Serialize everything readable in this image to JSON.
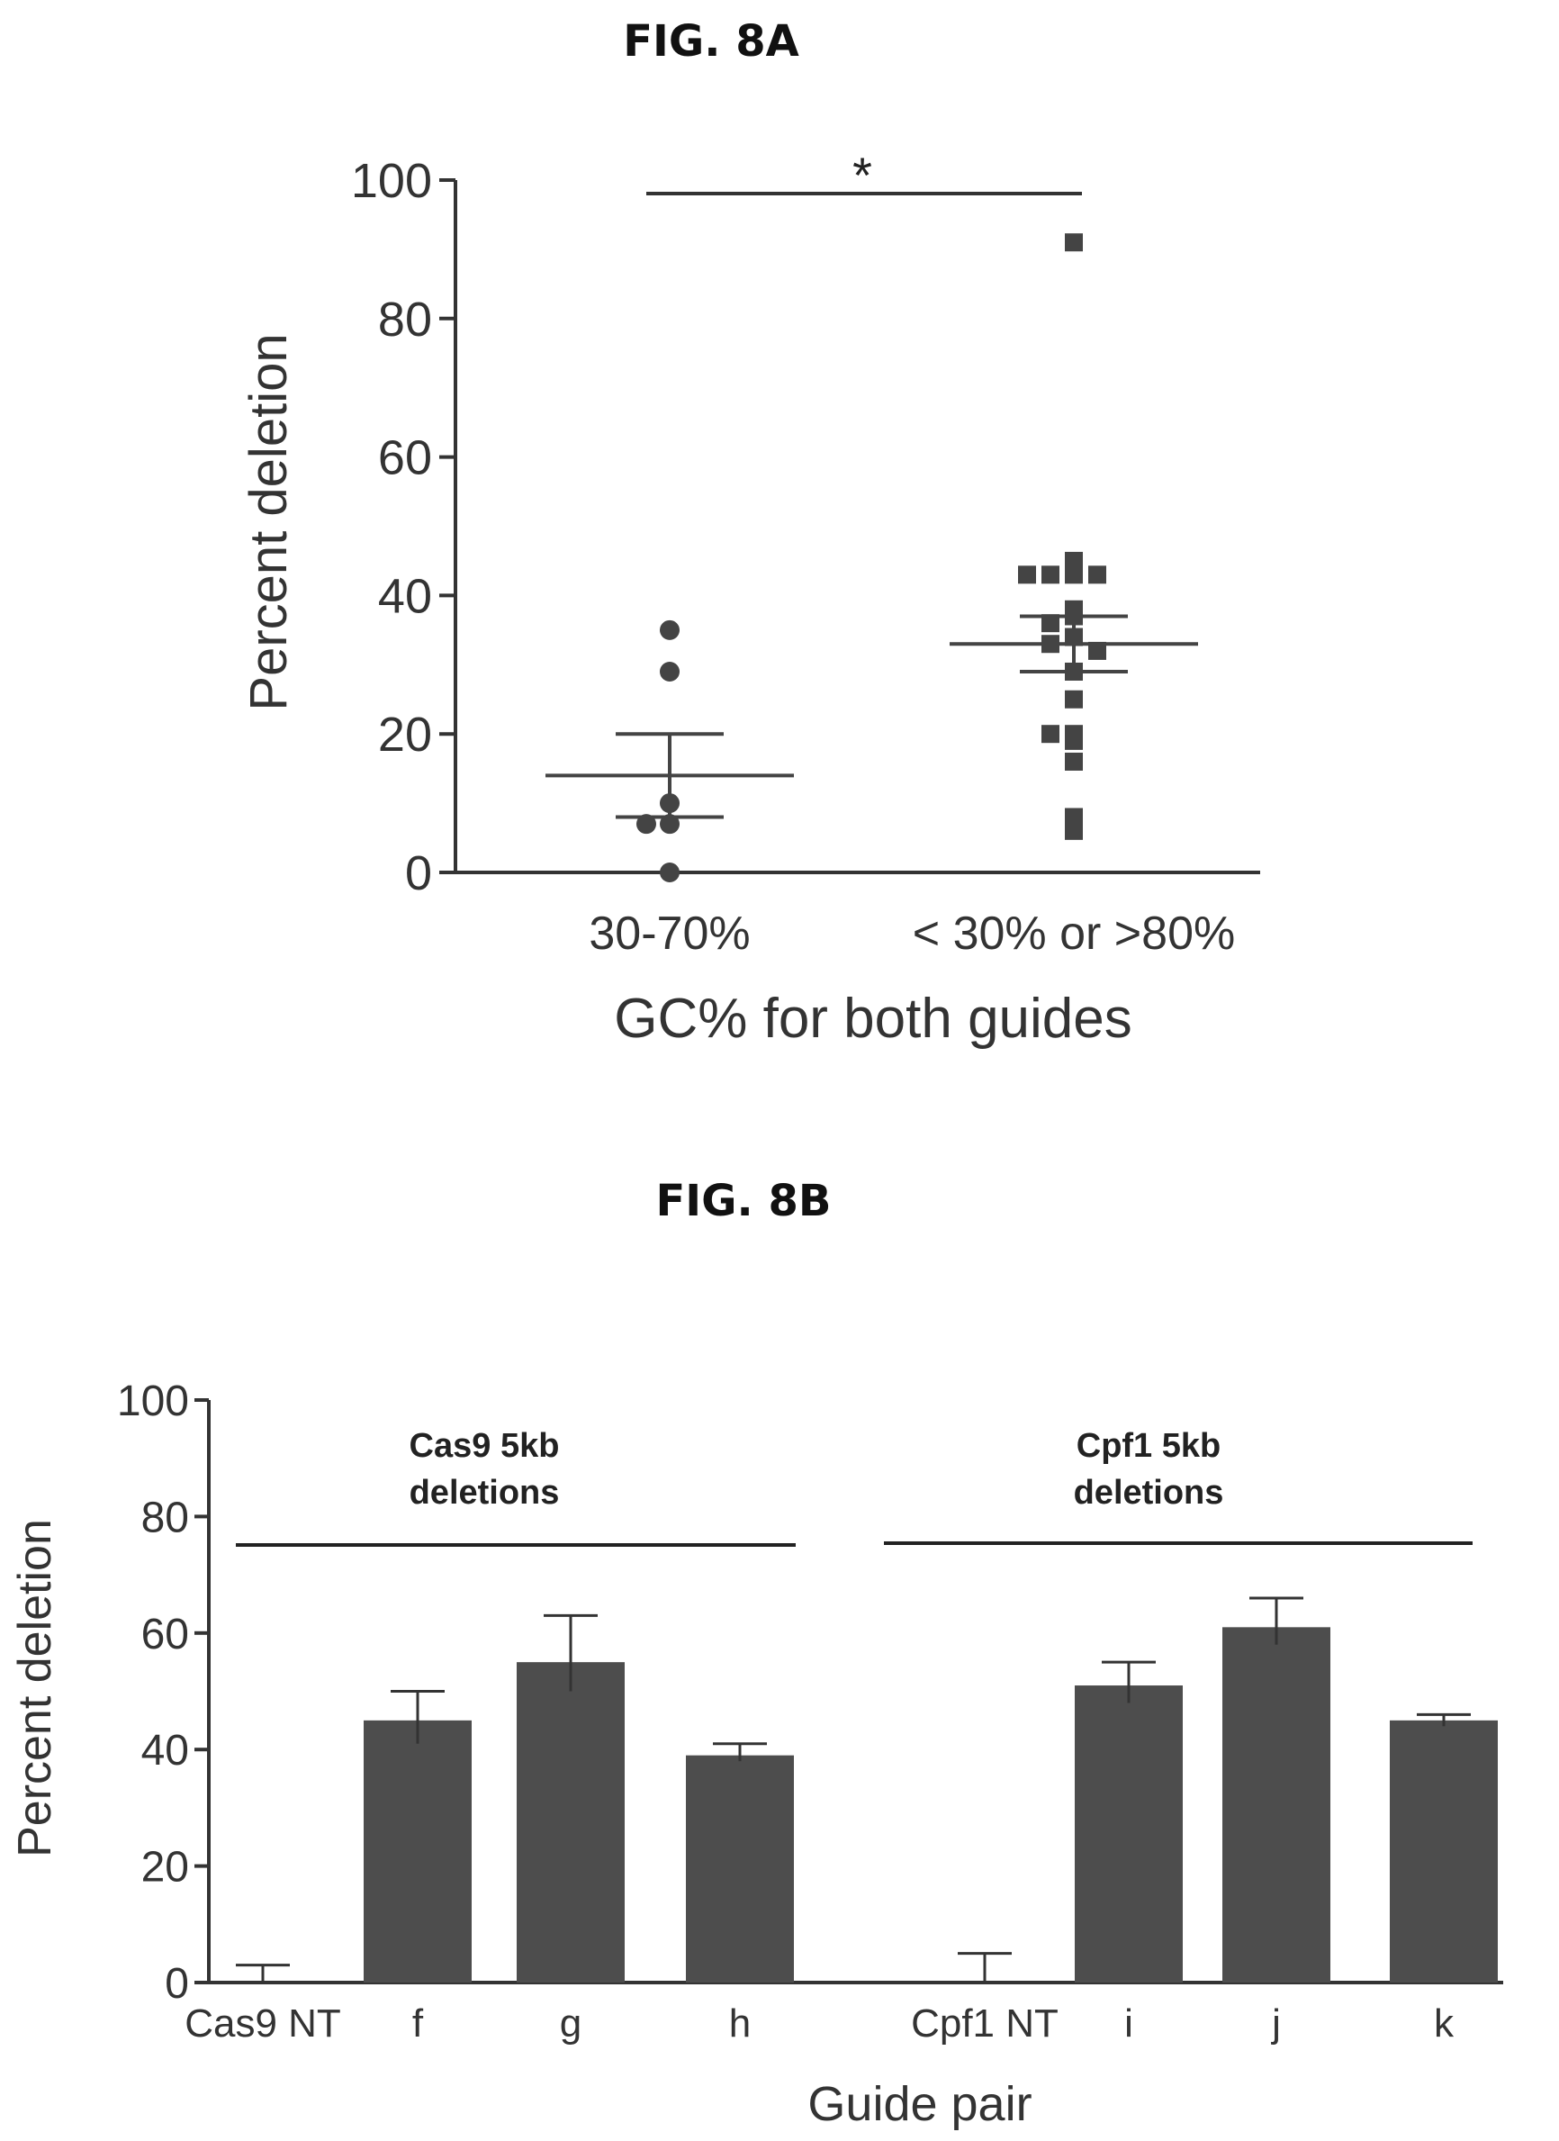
{
  "figures": {
    "a": {
      "title": "FIG. 8A"
    },
    "b": {
      "title": "FIG. 8B"
    }
  },
  "chart_data": [
    {
      "type": "scatter",
      "title": "FIG. 8A",
      "xlabel": "GC% for both guides",
      "ylabel": "Percent deletion",
      "ylim": [
        0,
        100
      ],
      "yticks": [
        "0",
        "20",
        "40",
        "60",
        "80",
        "100"
      ],
      "categories": [
        "30-70%",
        "< 30% or >80%"
      ],
      "groups": [
        {
          "category": "30-70%",
          "marker": "circle",
          "points": [
            35,
            29,
            10,
            7,
            7,
            0
          ],
          "mean": 14,
          "sem_upper": 20,
          "sem_lower": 8
        },
        {
          "category": "< 30% or >80%",
          "marker": "square",
          "points": [
            91,
            45,
            43,
            43,
            43,
            43,
            38,
            37,
            36,
            34,
            33,
            32,
            29,
            25,
            20,
            20,
            19,
            16,
            8,
            6
          ],
          "mean": 33,
          "sem_upper": 37,
          "sem_lower": 29
        }
      ],
      "annotations": [
        {
          "type": "significance",
          "text": "*",
          "between": [
            "30-70%",
            "< 30% or >80%"
          ]
        }
      ],
      "grid": false
    },
    {
      "type": "bar",
      "title": "FIG. 8B",
      "xlabel": "Guide pair",
      "ylabel": "Percent deletion",
      "ylim": [
        0,
        100
      ],
      "yticks": [
        "0",
        "20",
        "40",
        "60",
        "80",
        "100"
      ],
      "categories": [
        "Cas9 NT",
        "f",
        "g",
        "h",
        "Cpf1 NT",
        "i",
        "j",
        "k"
      ],
      "values": [
        0,
        45,
        55,
        39,
        0,
        51,
        61,
        45
      ],
      "error_upper": [
        3,
        50,
        63,
        41,
        5,
        55,
        66,
        46
      ],
      "error_lower": [
        0,
        41,
        50,
        38,
        0,
        48,
        58,
        44
      ],
      "annotations": [
        {
          "text_lines": [
            "Cas9 5kb",
            "deletions"
          ],
          "span": [
            "Cas9 NT",
            "h"
          ]
        },
        {
          "text_lines": [
            "Cpf1 5kb",
            "deletions"
          ],
          "span": [
            "Cpf1 NT",
            "k"
          ]
        }
      ],
      "grid": false
    }
  ]
}
